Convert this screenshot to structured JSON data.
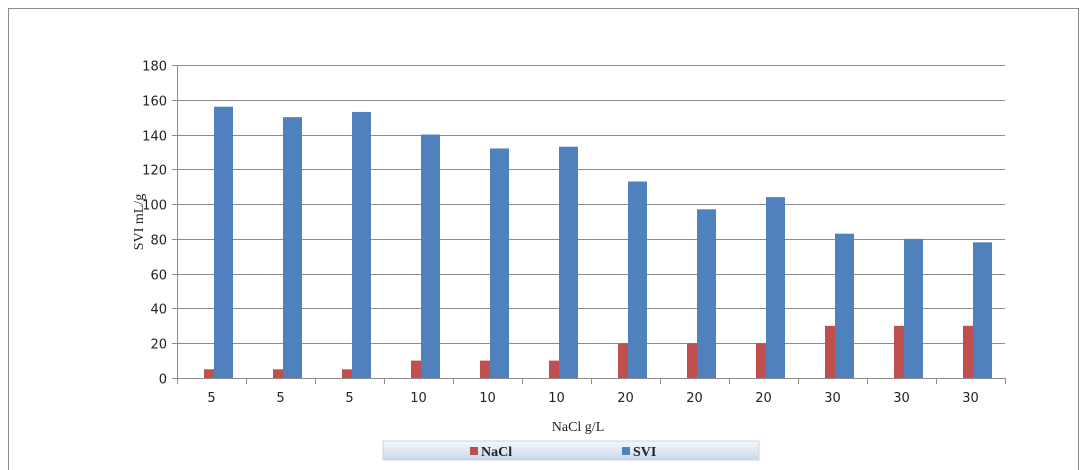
{
  "chart_data": {
    "type": "bar",
    "categories": [
      "5",
      "5",
      "5",
      "10",
      "10",
      "10",
      "20",
      "20",
      "20",
      "30",
      "30",
      "30"
    ],
    "series": [
      {
        "name": "NaCl",
        "values": [
          5,
          5,
          5,
          10,
          10,
          10,
          20,
          20,
          20,
          30,
          30,
          30
        ],
        "color": "#c0504d"
      },
      {
        "name": "SVI",
        "values": [
          156,
          150,
          153,
          140,
          132,
          133,
          113,
          97,
          104,
          83,
          80,
          78
        ],
        "color": "#4f81bd"
      }
    ],
    "xlabel": "NaCl g/L",
    "ylabel": "SVI mL/g",
    "ylim": [
      0,
      180
    ],
    "yticks": [
      0,
      20,
      40,
      60,
      80,
      100,
      120,
      140,
      160,
      180
    ],
    "grid": true,
    "legend": "bottom"
  }
}
